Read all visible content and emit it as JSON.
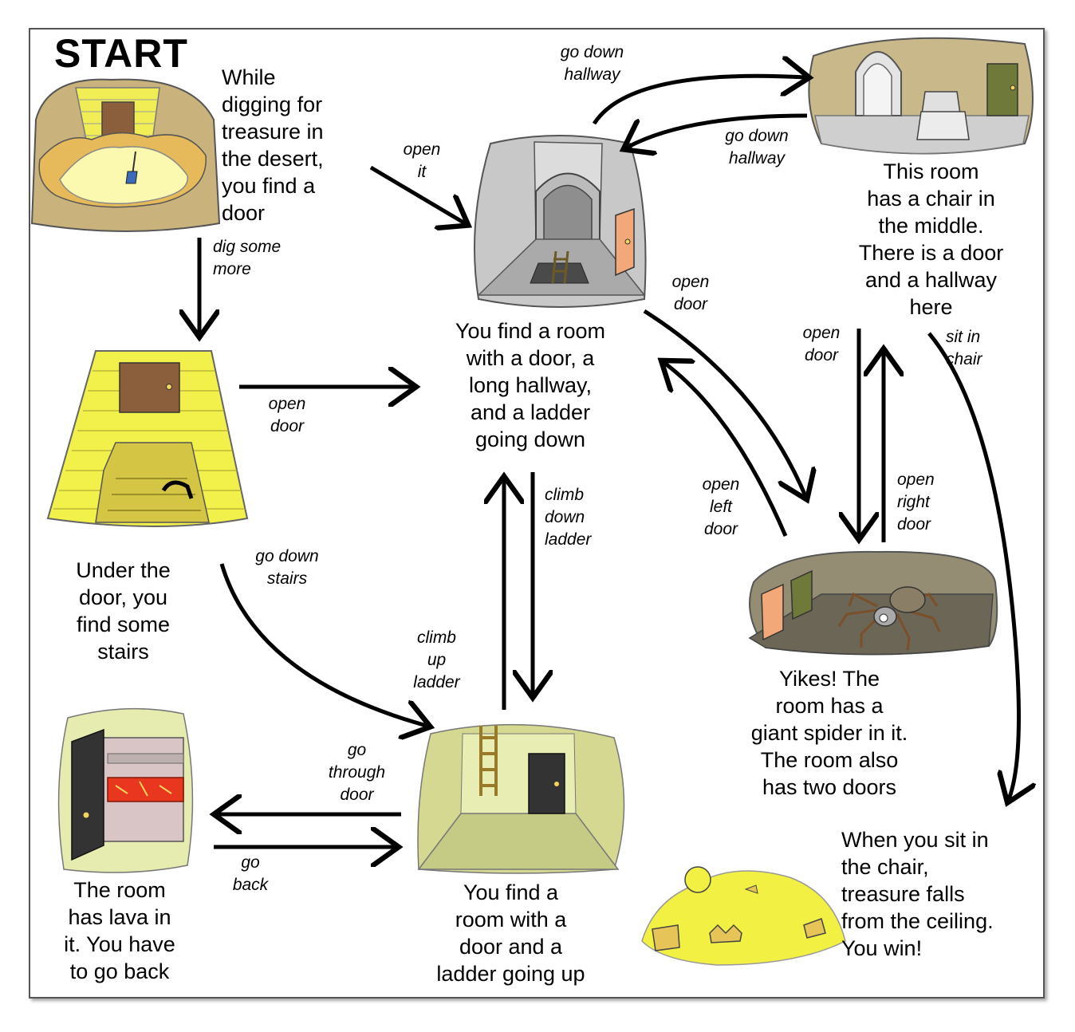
{
  "start_title": "START",
  "nodes": {
    "desert": "While\ndigging for\ntreasure in\nthe desert,\nyou find a\ndoor",
    "hallway_room": "You find a room\nwith a door, a\nlong hallway,\nand a ladder\ngoing down",
    "chair_room": "This room\nhas a chair in\nthe middle.\nThere is a door\nand a hallway\nhere",
    "stairs": "Under the\ndoor, you\nfind some\nstairs",
    "spider_room": "Yikes! The\nroom has a\ngiant spider in it.\nThe room also\nhas two doors",
    "lava_room": "The room\nhas lava in\nit. You have\nto go back",
    "ladder_up_room": "You find a\nroom with a\ndoor and a\nladder going up",
    "treasure": "When you sit in\nthe chair,\ntreasure falls\nfrom the ceiling.\nYou win!"
  },
  "edges": {
    "open_it": "open\nit",
    "dig_some_more": "dig some\nmore",
    "go_down_hallway_top": "go down\nhallway",
    "go_down_hallway_back": "go down\nhallway",
    "open_door_stairs": "open\ndoor",
    "open_door_to_spider": "open\ndoor",
    "open_door_chair": "open\ndoor",
    "sit_in_chair": "sit in\nchair",
    "climb_down_ladder": "climb\ndown\nladder",
    "open_left_door": "open\nleft\ndoor",
    "open_right_door": "open\nright\ndoor",
    "go_down_stairs": "go down\nstairs",
    "climb_up_ladder": "climb\nup\nladder",
    "go_through_door": "go\nthrough\ndoor",
    "go_back": "go\nback"
  },
  "colors": {
    "sand": "#e8c66a",
    "brick_yellow": "#f2f04a",
    "door_brown": "#8c5f3c",
    "stone_gray": "#c8c8c8",
    "olive_green": "#d7d99a",
    "lava_red": "#e8361f",
    "treasure_yellow": "#f2f043",
    "spider_floor": "#6c6656"
  }
}
